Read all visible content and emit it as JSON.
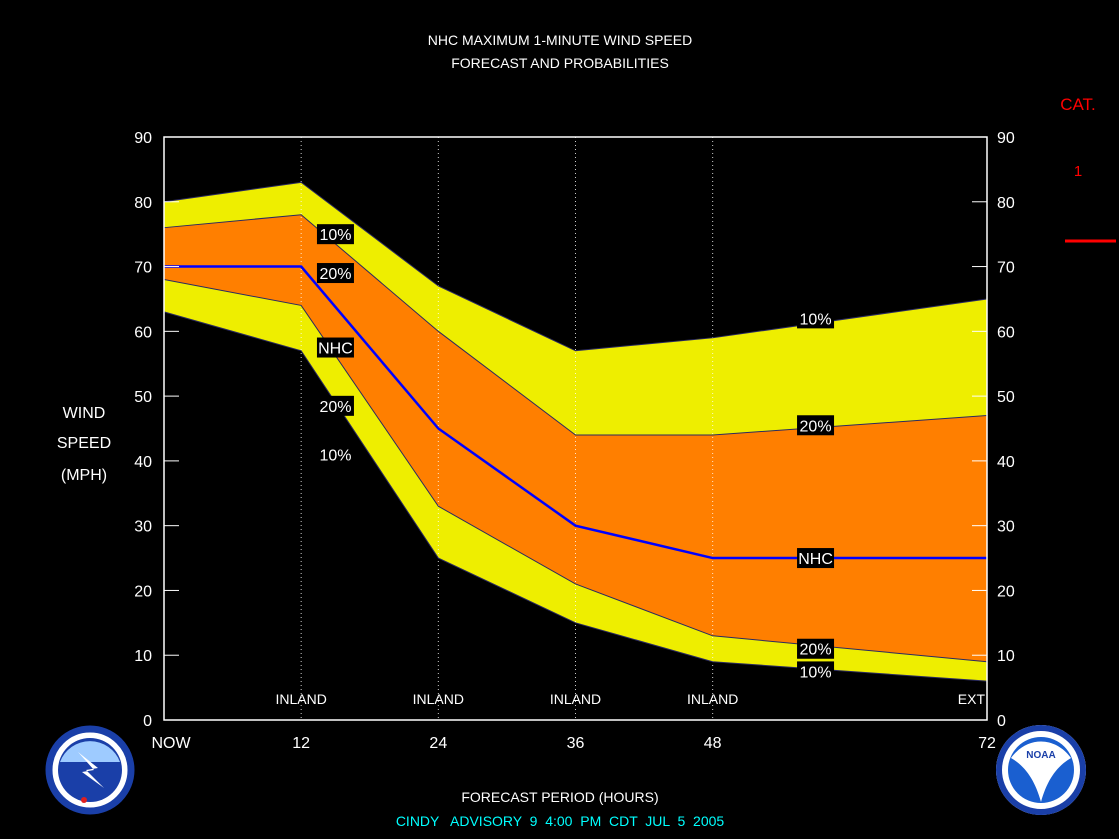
{
  "header": {
    "title_line1": "NHC MAXIMUM 1-MINUTE WIND SPEED",
    "title_line2": "FORECAST AND PROBABILITIES"
  },
  "category": {
    "label": "CAT.",
    "value": "1",
    "color": "#ff0000"
  },
  "footer": {
    "xlabel": "FORECAST PERIOD (HOURS)",
    "advisory": "CINDY   ADVISORY  9  4:00  PM  CDT  JUL  5  2005",
    "advisory_color": "#00ffff"
  },
  "ylabel_lines": [
    "WIND",
    "SPEED",
    "(MPH)"
  ],
  "logos": {
    "left": "nws-logo",
    "right": "noaa-logo"
  },
  "colors": {
    "outer_band": "#eeee00",
    "inner_band": "#ff7f00",
    "forecast_line": "#0000ff",
    "plot_bg": "#000000"
  },
  "chart_data": {
    "type": "area",
    "x": [
      0,
      12,
      24,
      36,
      48,
      72
    ],
    "x_tick_labels": [
      "NOW",
      "12",
      "24",
      "36",
      "48",
      "72"
    ],
    "xlim": [
      0,
      72
    ],
    "ylim": [
      0,
      90
    ],
    "y_ticks": [
      0,
      10,
      20,
      30,
      40,
      50,
      60,
      70,
      80,
      90
    ],
    "grid_x": [
      12,
      24,
      36,
      48
    ],
    "period_labels": [
      {
        "x": 12,
        "text": "INLAND"
      },
      {
        "x": 24,
        "text": "INLAND"
      },
      {
        "x": 36,
        "text": "INLAND"
      },
      {
        "x": 48,
        "text": "INLAND"
      },
      {
        "x": 72,
        "text": "EXT"
      }
    ],
    "series": [
      {
        "name": "10%",
        "values": [
          80,
          83,
          67,
          57,
          59,
          65
        ]
      },
      {
        "name": "20%",
        "values": [
          76,
          78,
          60,
          44,
          44,
          47
        ]
      },
      {
        "name": "NHC",
        "values": [
          70,
          70,
          45,
          30,
          25,
          25
        ]
      },
      {
        "name": "20%",
        "values": [
          68,
          64,
          33,
          21,
          13,
          9
        ]
      },
      {
        "name": "10%",
        "values": [
          63,
          57,
          25,
          15,
          9,
          6
        ]
      }
    ],
    "annotations": [
      {
        "text": "10%",
        "x": 15,
        "y": 75
      },
      {
        "text": "20%",
        "x": 15,
        "y": 69
      },
      {
        "text": "NHC",
        "x": 15,
        "y": 57.5
      },
      {
        "text": "20%",
        "x": 15,
        "y": 48.5
      },
      {
        "text": "10%",
        "x": 15,
        "y": 41
      },
      {
        "text": "10%",
        "x": 57,
        "y": 62
      },
      {
        "text": "20%",
        "x": 57,
        "y": 45.5
      },
      {
        "text": "NHC",
        "x": 57,
        "y": 25
      },
      {
        "text": "20%",
        "x": 57,
        "y": 11
      },
      {
        "text": "10%",
        "x": 57,
        "y": 7.5
      }
    ]
  }
}
